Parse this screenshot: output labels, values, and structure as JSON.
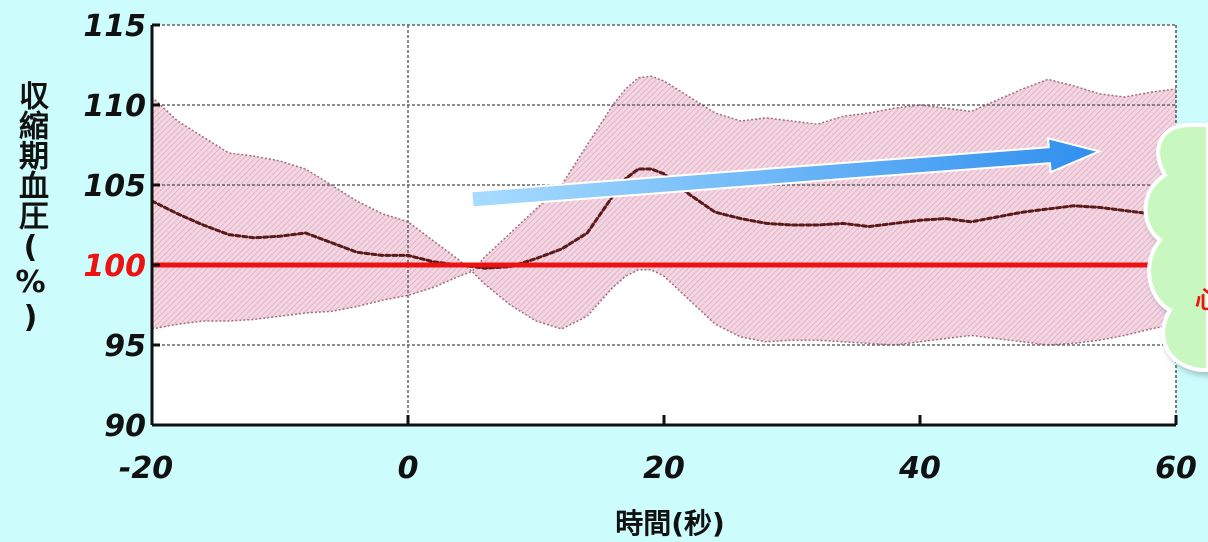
{
  "chart_data": {
    "type": "line",
    "title": "",
    "xlabel": "時間(秒)",
    "ylabel": "収縮期血圧(%)",
    "xlim": [
      -20,
      60
    ],
    "ylim": [
      90,
      115
    ],
    "x_ticks": [
      "-20",
      "0",
      "20",
      "40",
      "60"
    ],
    "y_ticks": [
      "90",
      "95",
      "100",
      "105",
      "110",
      "115"
    ],
    "reference_line": {
      "y": 100,
      "label": "100",
      "color": "#ee1111"
    },
    "grid": true,
    "series": [
      {
        "type": "band",
        "color": "#e8b4c8",
        "x": [
          -20,
          -18,
          -16,
          -14,
          -12,
          -10,
          -8,
          -6,
          -4,
          -2,
          0,
          2,
          4,
          5,
          6,
          8,
          10,
          12,
          14,
          16,
          17,
          18,
          19,
          20,
          22,
          24,
          26,
          28,
          30,
          32,
          34,
          36,
          38,
          40,
          42,
          44,
          46,
          48,
          50,
          52,
          54,
          56,
          58,
          60
        ],
        "upper": [
          110.5,
          109,
          108,
          107,
          106.8,
          106.5,
          106,
          105,
          104,
          103.2,
          102.7,
          101.5,
          100.3,
          99.6,
          100.5,
          102,
          103.5,
          105,
          107.5,
          110,
          111,
          111.7,
          111.8,
          111.5,
          110.5,
          109.5,
          109,
          109.2,
          109,
          108.8,
          109.3,
          109.5,
          109.8,
          110,
          109.8,
          109.6,
          110.3,
          111,
          111.6,
          111.2,
          110.7,
          110.5,
          110.8,
          111
        ],
        "lower": [
          96,
          96.3,
          96.5,
          96.5,
          96.6,
          96.8,
          97,
          97.1,
          97.4,
          97.8,
          98.1,
          98.6,
          99.3,
          99.6,
          98.8,
          97.5,
          96.5,
          96,
          96.8,
          98.6,
          99.3,
          99.7,
          99.7,
          99.3,
          97.8,
          96.3,
          95.5,
          95.2,
          95.3,
          95.3,
          95.2,
          95.1,
          95,
          95.2,
          95.4,
          95.6,
          95.4,
          95.2,
          95,
          95.1,
          95.3,
          95.6,
          96,
          96.3
        ]
      },
      {
        "type": "mean",
        "color": "#5a1a1a",
        "x": [
          -20,
          -18,
          -16,
          -14,
          -12,
          -10,
          -8,
          -6,
          -4,
          -2,
          0,
          2,
          4,
          5,
          6,
          8,
          10,
          12,
          14,
          16,
          17,
          18,
          19,
          20,
          22,
          24,
          26,
          28,
          30,
          32,
          34,
          36,
          38,
          40,
          42,
          44,
          46,
          48,
          50,
          52,
          54,
          56,
          58,
          60
        ],
        "values": [
          104,
          103.2,
          102.5,
          101.9,
          101.7,
          101.8,
          102,
          101.4,
          100.8,
          100.6,
          100.6,
          100.2,
          100,
          99.9,
          99.8,
          99.9,
          100.4,
          101,
          102,
          104.3,
          105.4,
          106,
          106,
          105.7,
          104.4,
          103.3,
          102.9,
          102.6,
          102.5,
          102.5,
          102.6,
          102.4,
          102.6,
          102.8,
          102.9,
          102.7,
          103,
          103.3,
          103.5,
          103.7,
          103.6,
          103.4,
          103.2,
          103.6
        ]
      }
    ],
    "arrow": {
      "from": [
        5,
        104.1
      ],
      "to": [
        54,
        107.1
      ],
      "color": "#4aa0f0"
    },
    "annotation": {
      "text": "心",
      "color": "#ee1111"
    },
    "colors": {
      "background": "#ccfcfc",
      "plot_background": "#ffffff",
      "grid": "#666666",
      "cloud": "#c8f8c0"
    }
  }
}
